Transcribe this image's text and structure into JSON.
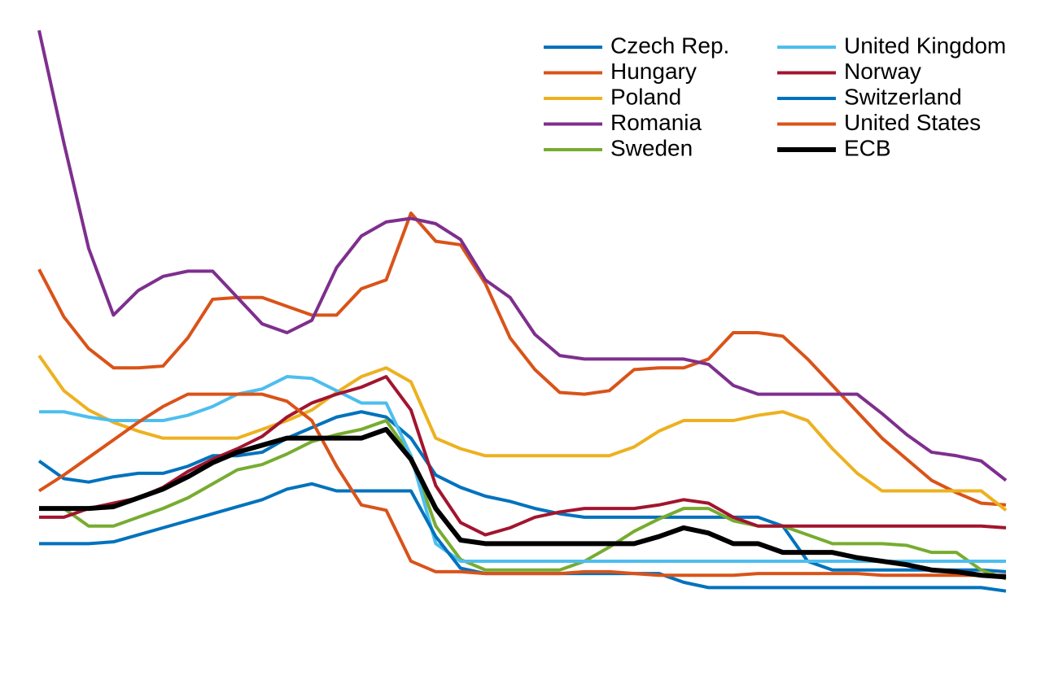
{
  "chart_data": {
    "type": "line",
    "x": [
      2005,
      2005.25,
      2005.5,
      2005.75,
      2006,
      2006.25,
      2006.5,
      2006.75,
      2007,
      2007.25,
      2007.5,
      2007.75,
      2008,
      2008.25,
      2008.5,
      2008.75,
      2009,
      2009.25,
      2009.5,
      2009.75,
      2010,
      2010.25,
      2010.5,
      2010.75,
      2011,
      2011.25,
      2011.5,
      2011.75,
      2012,
      2012.25,
      2012.5,
      2012.75,
      2013,
      2013.25,
      2013.5,
      2013.75,
      2014,
      2014.25,
      2014.5,
      2014.75
    ],
    "series": [
      {
        "name": "Czech Rep.",
        "color": "#0072bd",
        "linewidth": 4,
        "values": [
          3.35,
          2.85,
          2.75,
          2.9,
          3.0,
          3.0,
          3.2,
          3.5,
          3.5,
          3.6,
          4.0,
          4.3,
          4.6,
          4.75,
          4.6,
          4.0,
          2.95,
          2.6,
          2.35,
          2.2,
          2.0,
          1.85,
          1.75,
          1.75,
          1.75,
          1.75,
          1.75,
          1.75,
          1.75,
          1.75,
          1.5,
          0.5,
          0.25,
          0.25,
          0.25,
          0.25,
          0.25,
          0.25,
          0.25,
          0.2
        ]
      },
      {
        "name": "Hungary",
        "color": "#d95319",
        "linewidth": 4,
        "values": [
          8.8,
          7.45,
          6.55,
          6.0,
          6.0,
          6.05,
          6.85,
          7.95,
          8.0,
          8.0,
          7.75,
          7.5,
          7.5,
          8.25,
          8.5,
          10.4,
          9.6,
          9.5,
          8.4,
          6.85,
          5.95,
          5.3,
          5.25,
          5.35,
          5.95,
          6.0,
          6.0,
          6.25,
          7.0,
          7.0,
          6.9,
          6.25,
          5.5,
          4.75,
          4.0,
          3.4,
          2.8,
          2.45,
          2.15,
          2.1
        ]
      },
      {
        "name": "Poland",
        "color": "#edb120",
        "linewidth": 4,
        "values": [
          6.35,
          5.35,
          4.8,
          4.45,
          4.2,
          4.0,
          4.0,
          4.0,
          4.0,
          4.25,
          4.5,
          4.8,
          5.3,
          5.75,
          6.0,
          5.6,
          4.0,
          3.7,
          3.5,
          3.5,
          3.5,
          3.5,
          3.5,
          3.5,
          3.75,
          4.2,
          4.5,
          4.5,
          4.5,
          4.65,
          4.75,
          4.5,
          3.7,
          3.0,
          2.5,
          2.5,
          2.5,
          2.5,
          2.5,
          1.95
        ]
      },
      {
        "name": "Romania",
        "color": "#7e2f8e",
        "linewidth": 4,
        "values": [
          15.6,
          12.4,
          9.4,
          7.5,
          8.2,
          8.6,
          8.75,
          8.75,
          8.0,
          7.25,
          7.0,
          7.35,
          8.85,
          9.75,
          10.15,
          10.25,
          10.1,
          9.65,
          8.5,
          8.0,
          6.95,
          6.35,
          6.25,
          6.25,
          6.25,
          6.25,
          6.25,
          6.1,
          5.5,
          5.25,
          5.25,
          5.25,
          5.25,
          5.25,
          4.7,
          4.1,
          3.6,
          3.5,
          3.35,
          2.8
        ]
      },
      {
        "name": "Sweden",
        "color": "#77ac30",
        "linewidth": 4,
        "values": [
          2.0,
          2.0,
          1.5,
          1.5,
          1.75,
          2.0,
          2.3,
          2.7,
          3.1,
          3.25,
          3.55,
          3.9,
          4.1,
          4.25,
          4.5,
          3.5,
          1.5,
          0.55,
          0.25,
          0.25,
          0.25,
          0.25,
          0.5,
          0.9,
          1.35,
          1.7,
          2.0,
          2.0,
          1.65,
          1.5,
          1.5,
          1.25,
          1.0,
          1.0,
          1.0,
          0.95,
          0.75,
          0.75,
          0.25,
          0.0
        ]
      },
      {
        "name": "United Kingdom",
        "color": "#4dbeee",
        "linewidth": 4,
        "values": [
          4.75,
          4.75,
          4.6,
          4.5,
          4.5,
          4.5,
          4.65,
          4.9,
          5.25,
          5.4,
          5.75,
          5.7,
          5.35,
          5.0,
          5.0,
          3.5,
          1.0,
          0.5,
          0.5,
          0.5,
          0.5,
          0.5,
          0.5,
          0.5,
          0.5,
          0.5,
          0.5,
          0.5,
          0.5,
          0.5,
          0.5,
          0.5,
          0.5,
          0.5,
          0.5,
          0.5,
          0.5,
          0.5,
          0.5,
          0.5
        ]
      },
      {
        "name": "Norway",
        "color": "#a2142f",
        "linewidth": 4,
        "values": [
          1.75,
          1.75,
          2.0,
          2.15,
          2.3,
          2.6,
          3.05,
          3.4,
          3.7,
          4.05,
          4.6,
          5.0,
          5.25,
          5.45,
          5.75,
          4.8,
          2.65,
          1.6,
          1.25,
          1.45,
          1.75,
          1.9,
          2.0,
          2.0,
          2.0,
          2.1,
          2.25,
          2.15,
          1.75,
          1.5,
          1.5,
          1.5,
          1.5,
          1.5,
          1.5,
          1.5,
          1.5,
          1.5,
          1.5,
          1.45
        ]
      },
      {
        "name": "Switzerland",
        "color": "#0072bd",
        "linewidth": 4,
        "values": [
          1.0,
          1.0,
          1.0,
          1.05,
          1.25,
          1.45,
          1.65,
          1.85,
          2.05,
          2.25,
          2.55,
          2.7,
          2.5,
          2.5,
          2.5,
          2.5,
          1.2,
          0.3,
          0.15,
          0.15,
          0.15,
          0.15,
          0.15,
          0.15,
          0.15,
          0.15,
          -0.1,
          -0.25,
          -0.25,
          -0.25,
          -0.25,
          -0.25,
          -0.25,
          -0.25,
          -0.25,
          -0.25,
          -0.25,
          -0.25,
          -0.25,
          -0.35
        ]
      },
      {
        "name": "United States",
        "color": "#d95319",
        "linewidth": 4,
        "values": [
          2.5,
          2.95,
          3.45,
          3.95,
          4.45,
          4.9,
          5.25,
          5.25,
          5.25,
          5.25,
          5.05,
          4.5,
          3.2,
          2.1,
          1.95,
          0.5,
          0.2,
          0.2,
          0.15,
          0.15,
          0.15,
          0.15,
          0.2,
          0.2,
          0.15,
          0.1,
          0.1,
          0.1,
          0.1,
          0.15,
          0.15,
          0.15,
          0.15,
          0.15,
          0.1,
          0.1,
          0.1,
          0.1,
          0.1,
          0.1
        ]
      },
      {
        "name": "ECB",
        "color": "#000000",
        "linewidth": 6,
        "values": [
          2.0,
          2.0,
          2.0,
          2.05,
          2.3,
          2.55,
          2.9,
          3.3,
          3.6,
          3.8,
          4.0,
          4.0,
          4.0,
          4.0,
          4.25,
          3.4,
          2.0,
          1.1,
          1.0,
          1.0,
          1.0,
          1.0,
          1.0,
          1.0,
          1.0,
          1.2,
          1.45,
          1.3,
          1.0,
          1.0,
          0.75,
          0.75,
          0.75,
          0.6,
          0.5,
          0.4,
          0.25,
          0.2,
          0.1,
          0.05
        ]
      }
    ],
    "shaded_periods": [
      [
        2008.25,
        2009.375
      ],
      [
        2011.625,
        2014.75
      ]
    ],
    "shade_color": "#e3e3e3",
    "xlim": [
      2005,
      2014.75
    ],
    "xticks": [
      2005,
      2006,
      2007,
      2008,
      2009,
      2010,
      2011,
      2012,
      2013,
      2014
    ],
    "ylim": [
      -2,
      16
    ],
    "yticks": [
      -2,
      0,
      2,
      4,
      6,
      8,
      10,
      12,
      14,
      16
    ],
    "grid": true,
    "legend_position": "upper-right",
    "legend_columns": 2
  }
}
